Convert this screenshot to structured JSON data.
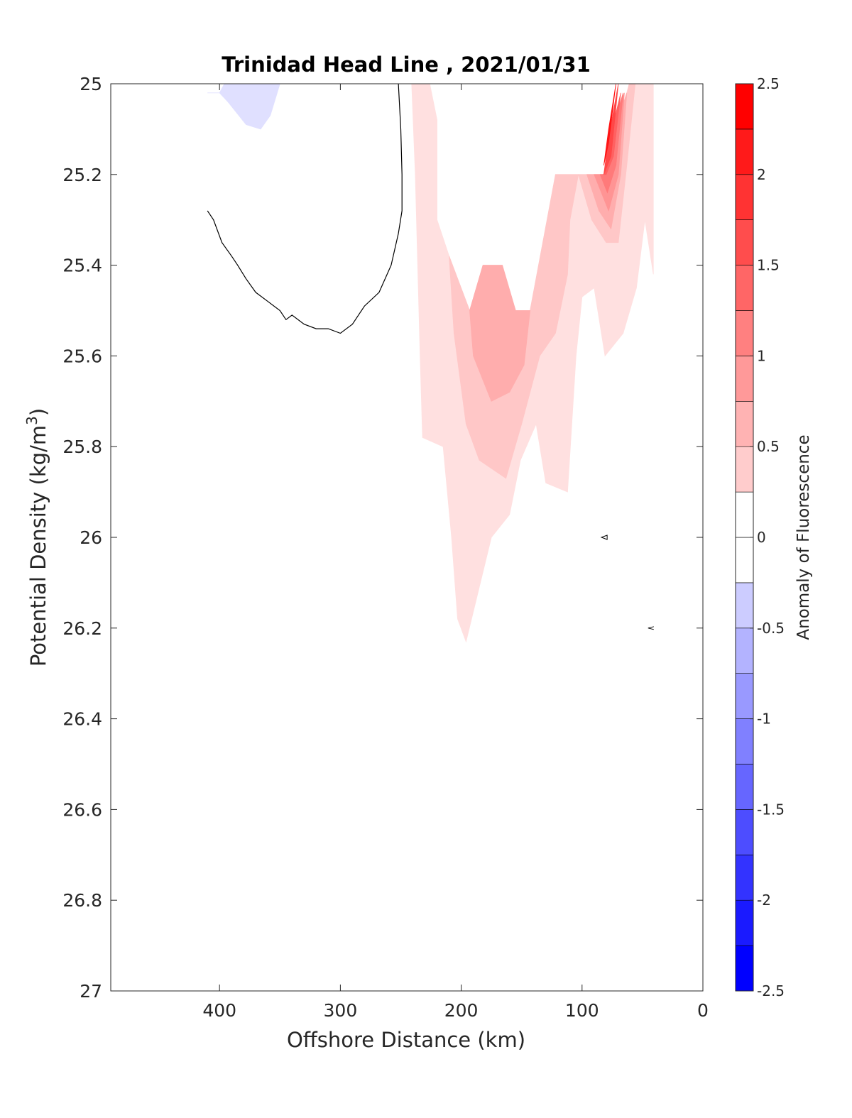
{
  "chart_data": {
    "type": "contour",
    "title": "Trinidad Head Line , 2021/01/31",
    "xlabel": "Offshore Distance (km)",
    "ylabel": "Potential Density (kg/m",
    "ylabel_sup": "3",
    "ylabel_close": ")",
    "colorbar_label": "Anomaly of Fluorescence",
    "xlim": [
      490,
      0
    ],
    "ylim": [
      27,
      25
    ],
    "xticks": [
      400,
      300,
      200,
      100,
      0
    ],
    "yticks": [
      25,
      25.2,
      25.4,
      25.6,
      25.8,
      26,
      26.2,
      26.4,
      26.6,
      26.8,
      27
    ],
    "ytick_labels": [
      "25",
      "25.2",
      "25.4",
      "25.6",
      "25.8",
      "26",
      "26.2",
      "26.4",
      "26.6",
      "26.8",
      "27"
    ],
    "colorbar_range": [
      -2.5,
      2.5
    ],
    "colorbar_ticks": [
      "-2.5",
      "-2",
      "-1.5",
      "-1",
      "-0.5",
      "0",
      "0.5",
      "1",
      "1.5",
      "2",
      "2.5"
    ],
    "colorbar_tick_values": [
      -2.5,
      -2,
      -1.5,
      -1,
      -0.5,
      0,
      0.5,
      1,
      1.5,
      2,
      2.5
    ],
    "colorbar_levels": [
      -2.5,
      -2.25,
      -2,
      -1.75,
      -1.5,
      -1.25,
      -1,
      -0.75,
      -0.5,
      -0.25,
      0,
      0.25,
      0.5,
      0.75,
      1,
      1.25,
      1.5,
      1.75,
      2,
      2.25,
      2.5
    ],
    "colormap": {
      "negative": "#0000ff",
      "zero": "#ffffff",
      "positive": "#ff0000"
    },
    "regions": [
      {
        "level": -0.25,
        "polygon": [
          [
            410,
            25.02
          ],
          [
            400,
            25.02
          ],
          [
            396,
            25.0
          ],
          [
            350,
            25.0
          ],
          [
            358,
            25.07
          ],
          [
            366,
            25.1
          ],
          [
            378,
            25.09
          ],
          [
            393,
            25.04
          ],
          [
            400,
            25.02
          ]
        ]
      },
      {
        "level": 0.25,
        "polygon": [
          [
            241,
            25.0
          ],
          [
            226,
            25.0
          ],
          [
            220,
            25.08
          ],
          [
            220,
            25.3
          ],
          [
            210,
            25.38
          ],
          [
            193,
            25.5
          ],
          [
            182,
            25.4
          ],
          [
            166,
            25.4
          ],
          [
            155,
            25.5
          ],
          [
            143,
            25.5
          ],
          [
            122,
            25.2
          ],
          [
            82,
            25.2
          ],
          [
            61,
            25.0
          ],
          [
            41,
            25.0
          ],
          [
            41,
            25.42
          ],
          [
            48,
            25.3
          ],
          [
            55,
            25.45
          ],
          [
            66,
            25.55
          ],
          [
            81,
            25.6
          ],
          [
            90,
            25.45
          ],
          [
            100,
            25.47
          ],
          [
            105,
            25.6
          ],
          [
            112,
            25.9
          ],
          [
            130,
            25.88
          ],
          [
            138,
            25.75
          ],
          [
            151,
            25.83
          ],
          [
            160,
            25.95
          ],
          [
            175,
            26.0
          ],
          [
            196,
            26.23
          ],
          [
            203,
            26.18
          ],
          [
            208,
            26.0
          ],
          [
            215,
            25.8
          ],
          [
            232,
            25.78
          ],
          [
            234,
            25.6
          ],
          [
            238,
            25.2
          ]
        ]
      },
      {
        "level": 0.5,
        "polygon": [
          [
            210,
            25.38
          ],
          [
            193,
            25.5
          ],
          [
            182,
            25.4
          ],
          [
            166,
            25.4
          ],
          [
            155,
            25.5
          ],
          [
            143,
            25.5
          ],
          [
            122,
            25.2
          ],
          [
            103,
            25.2
          ],
          [
            110,
            25.3
          ],
          [
            112,
            25.42
          ],
          [
            122,
            25.55
          ],
          [
            135,
            25.6
          ],
          [
            150,
            25.75
          ],
          [
            163,
            25.87
          ],
          [
            185,
            25.83
          ],
          [
            196,
            25.75
          ],
          [
            206,
            25.55
          ]
        ]
      },
      {
        "level": 0.75,
        "polygon": [
          [
            193,
            25.5
          ],
          [
            182,
            25.4
          ],
          [
            166,
            25.4
          ],
          [
            155,
            25.5
          ],
          [
            143,
            25.5
          ],
          [
            148,
            25.62
          ],
          [
            160,
            25.68
          ],
          [
            175,
            25.7
          ],
          [
            190,
            25.6
          ]
        ]
      },
      {
        "level": 0.5,
        "polygon": [
          [
            103,
            25.2
          ],
          [
            82,
            25.2
          ],
          [
            68,
            25.08
          ],
          [
            61,
            25.0
          ],
          [
            56,
            25.0
          ],
          [
            63,
            25.18
          ],
          [
            70,
            25.35
          ],
          [
            80,
            25.35
          ],
          [
            92,
            25.3
          ]
        ]
      },
      {
        "level": 0.75,
        "polygon": [
          [
            96,
            25.2
          ],
          [
            82,
            25.2
          ],
          [
            75,
            25.12
          ],
          [
            63,
            25.02
          ],
          [
            68,
            25.2
          ],
          [
            76,
            25.32
          ],
          [
            86,
            25.28
          ]
        ]
      },
      {
        "level": 1.0,
        "polygon": [
          [
            90,
            25.2
          ],
          [
            82,
            25.2
          ],
          [
            75,
            25.1
          ],
          [
            65,
            25.02
          ],
          [
            70,
            25.2
          ],
          [
            78,
            25.28
          ]
        ]
      },
      {
        "level": 1.25,
        "polygon": [
          [
            85,
            25.2
          ],
          [
            82,
            25.2
          ],
          [
            75,
            25.1
          ],
          [
            66,
            25.02
          ],
          [
            72,
            25.18
          ],
          [
            79,
            25.24
          ]
        ]
      },
      {
        "level": 1.5,
        "polygon": [
          [
            82,
            25.2
          ],
          [
            76,
            25.11
          ],
          [
            68,
            25.02
          ],
          [
            74,
            25.16
          ],
          [
            80,
            25.2
          ]
        ]
      },
      {
        "level": 1.75,
        "polygon": [
          [
            82,
            25.2
          ],
          [
            78,
            25.12
          ],
          [
            70,
            25.0
          ],
          [
            76,
            25.16
          ]
        ]
      },
      {
        "level": 2.25,
        "polygon": [
          [
            82,
            25.18
          ],
          [
            78,
            25.1
          ],
          [
            72,
            25.0
          ],
          [
            78,
            25.13
          ]
        ]
      }
    ],
    "zero_contour": [
      [
        410,
        25.28
      ],
      [
        405,
        25.3
      ],
      [
        398,
        25.35
      ],
      [
        390,
        25.38
      ],
      [
        385,
        25.4
      ],
      [
        378,
        25.43
      ],
      [
        370,
        25.46
      ],
      [
        360,
        25.48
      ],
      [
        350,
        25.5
      ],
      [
        345,
        25.52
      ],
      [
        340,
        25.51
      ],
      [
        330,
        25.53
      ],
      [
        320,
        25.54
      ],
      [
        310,
        25.54
      ],
      [
        300,
        25.55
      ],
      [
        290,
        25.53
      ],
      [
        280,
        25.49
      ],
      [
        268,
        25.46
      ],
      [
        258,
        25.4
      ],
      [
        252,
        25.33
      ],
      [
        249,
        25.28
      ],
      [
        249,
        25.2
      ],
      [
        250,
        25.1
      ],
      [
        252,
        25.0
      ]
    ],
    "marks": [
      {
        "x": 81,
        "y": 26.0,
        "shape": "triangle"
      },
      {
        "x": 43,
        "y": 26.2,
        "shape": "caret"
      }
    ]
  }
}
